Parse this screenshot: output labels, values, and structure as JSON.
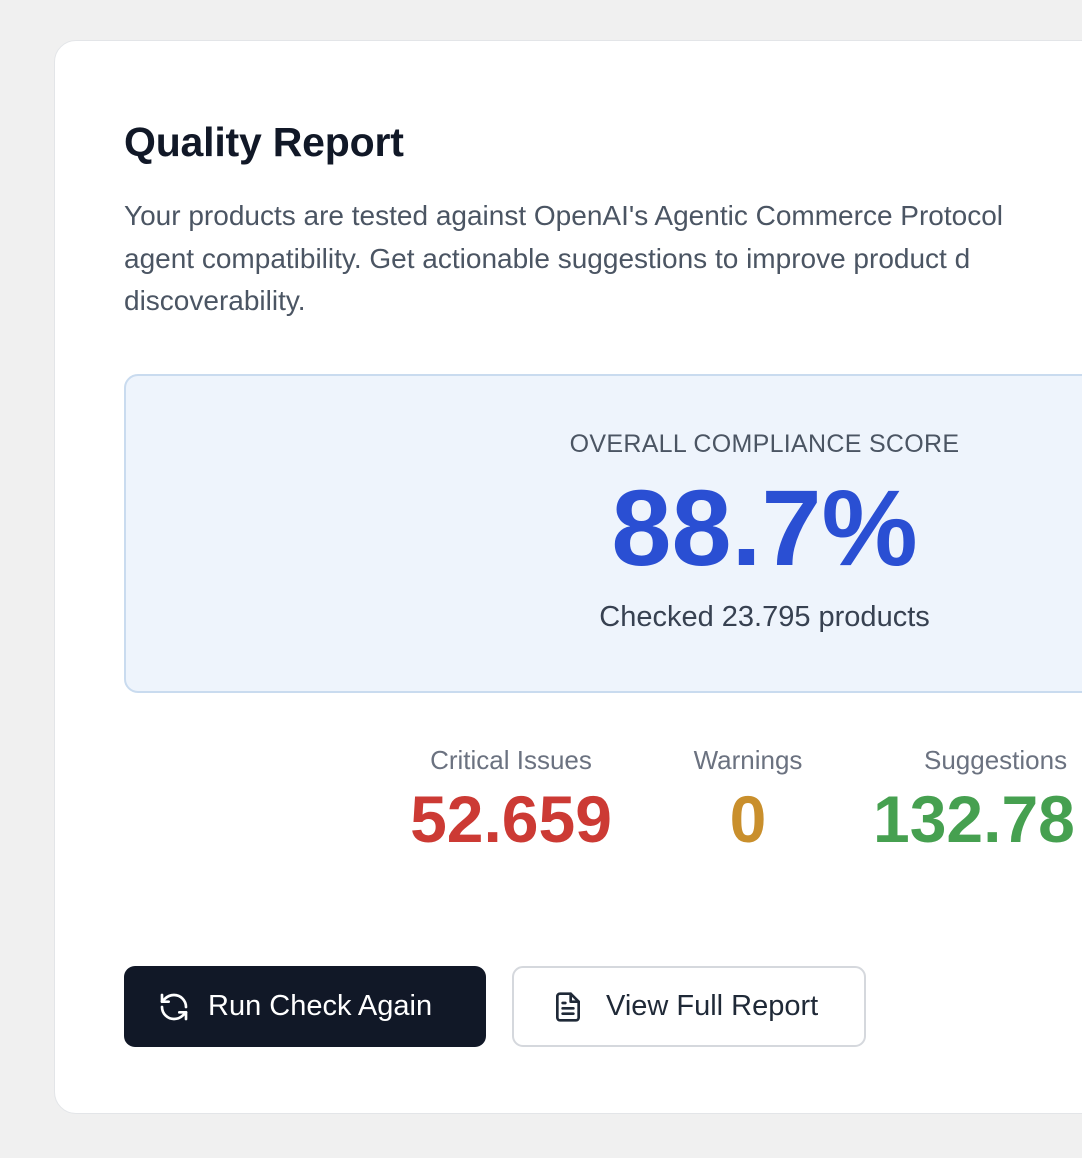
{
  "report": {
    "title": "Quality Report",
    "description_lines": [
      "Your products are tested against OpenAI's Agentic Commerce Protocol",
      "agent compatibility. Get actionable suggestions to improve product d",
      "discoverability."
    ]
  },
  "score": {
    "label": "OVERALL COMPLIANCE SCORE",
    "value": "88.7%",
    "subtext": "Checked 23.795 products"
  },
  "stats": {
    "critical": {
      "label": "Critical Issues",
      "value": "52.659",
      "color": "#cc3a34"
    },
    "warnings": {
      "label": "Warnings",
      "value": "0",
      "color": "#c98f2c"
    },
    "suggestions": {
      "label": "Suggestions",
      "value": "132.78",
      "color": "#46a050"
    }
  },
  "actions": {
    "run_again": {
      "label": "Run Check Again",
      "icon": "refresh-icon"
    },
    "view_report": {
      "label": "View Full Report",
      "icon": "document-icon"
    }
  },
  "colors": {
    "accent": "#2a4fd3",
    "primary_button": "#111827",
    "score_panel_bg": "#eef4fc"
  }
}
